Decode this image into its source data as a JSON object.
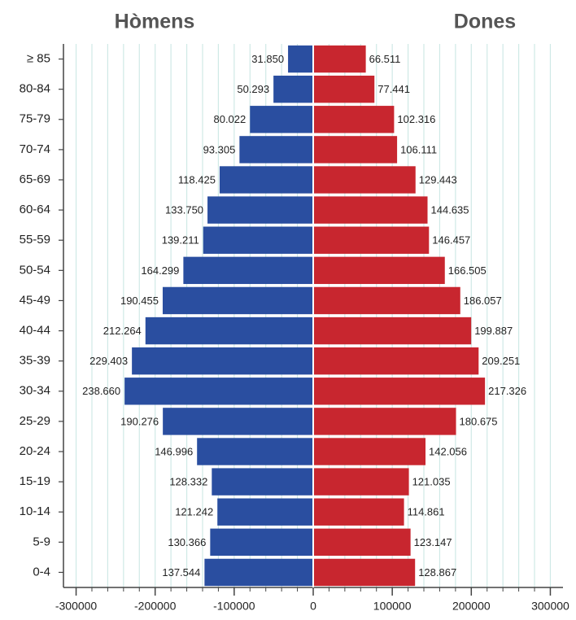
{
  "chart_data": {
    "type": "pyramid",
    "categories": [
      "≥ 85",
      "80-84",
      "75-79",
      "70-74",
      "65-69",
      "60-64",
      "55-59",
      "50-54",
      "45-49",
      "40-44",
      "35-39",
      "30-34",
      "25-29",
      "20-24",
      "15-19",
      "10-14",
      "5-9",
      "0-4"
    ],
    "series": [
      {
        "name": "Hòmens",
        "color": "#2a4ea0",
        "values": [
          -31850,
          -50293,
          -80022,
          -93305,
          -118425,
          -133750,
          -139211,
          -164299,
          -190455,
          -212264,
          -229403,
          -238660,
          -190276,
          -146996,
          -128332,
          -121242,
          -130366,
          -137544
        ],
        "value_labels": [
          "31.850",
          "50.293",
          "80.022",
          "93.305",
          "118.425",
          "133.750",
          "139.211",
          "164.299",
          "190.455",
          "212.264",
          "229.403",
          "238.660",
          "190.276",
          "146.996",
          "128.332",
          "121.242",
          "130.366",
          "137.544"
        ]
      },
      {
        "name": "Dones",
        "color": "#c8262f",
        "values": [
          66511,
          77441,
          102316,
          106111,
          129443,
          144635,
          146457,
          166505,
          186057,
          199887,
          209251,
          217326,
          180675,
          142056,
          121035,
          114861,
          123147,
          128867
        ],
        "value_labels": [
          "66.511",
          "77.441",
          "102.316",
          "106.111",
          "129.443",
          "144.635",
          "146.457",
          "166.505",
          "186.057",
          "199.887",
          "209.251",
          "217.326",
          "180.675",
          "142.056",
          "121.035",
          "114.861",
          "123.147",
          "128.867"
        ]
      }
    ],
    "xlim": [
      -316000,
      316000
    ],
    "xticks": [
      -300000,
      -200000,
      -100000,
      0,
      100000,
      200000,
      300000
    ],
    "xminorticks": [
      -300000,
      -280000,
      -260000,
      -240000,
      -220000,
      -200000,
      -180000,
      -160000,
      -140000,
      -120000,
      -100000,
      -80000,
      -60000,
      -40000,
      -20000,
      0,
      20000,
      40000,
      60000,
      80000,
      100000,
      120000,
      140000,
      160000,
      180000,
      200000,
      220000,
      240000,
      260000,
      280000,
      300000
    ],
    "grid": true
  }
}
